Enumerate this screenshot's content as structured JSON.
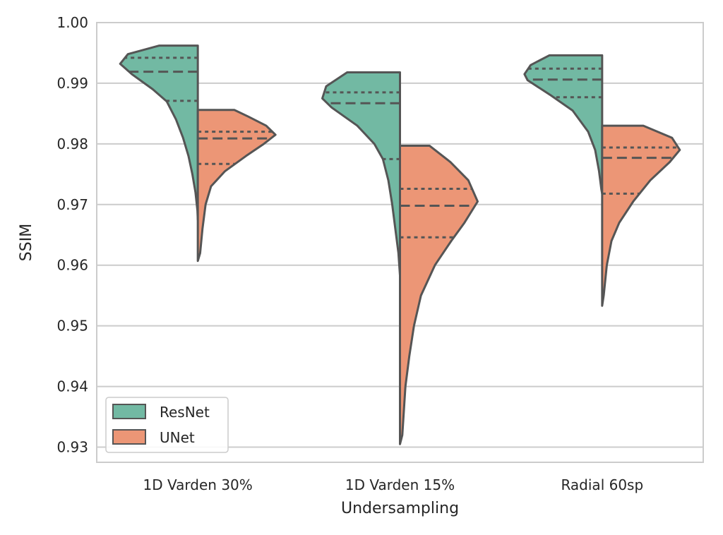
{
  "chart_data": {
    "type": "violin",
    "split": true,
    "title": "",
    "xlabel": "Undersampling",
    "ylabel": "SSIM",
    "categories": [
      "1D Varden 30%",
      "1D Varden 15%",
      "Radial 60sp"
    ],
    "ylim": [
      0.9275,
      1.0
    ],
    "yticks": [
      "0.93",
      "0.94",
      "0.95",
      "0.96",
      "0.97",
      "0.98",
      "0.99",
      "1.00"
    ],
    "grid": true,
    "legend_position": "lower-left",
    "inner": "quartile",
    "series": [
      {
        "name": "ResNet",
        "color": "#72b9a3",
        "violins": [
          {
            "min": 0.9675,
            "max": 0.9962,
            "q1": 0.9871,
            "median": 0.9919,
            "q3": 0.9942,
            "profile": [
              [
                0.9675,
                0.0
              ],
              [
                0.969,
                0.005
              ],
              [
                0.972,
                0.03
              ],
              [
                0.975,
                0.07
              ],
              [
                0.978,
                0.12
              ],
              [
                0.981,
                0.19
              ],
              [
                0.984,
                0.28
              ],
              [
                0.987,
                0.4
              ],
              [
                0.989,
                0.58
              ],
              [
                0.9915,
                0.85
              ],
              [
                0.9932,
                1.0
              ],
              [
                0.9948,
                0.9
              ],
              [
                0.9962,
                0.5
              ]
            ]
          },
          {
            "min": 0.9583,
            "max": 0.9918,
            "q1": 0.9775,
            "median": 0.9867,
            "q3": 0.9885,
            "profile": [
              [
                0.9583,
                0.0
              ],
              [
                0.962,
                0.02
              ],
              [
                0.966,
                0.06
              ],
              [
                0.97,
                0.1
              ],
              [
                0.974,
                0.15
              ],
              [
                0.9775,
                0.22
              ],
              [
                0.98,
                0.33
              ],
              [
                0.983,
                0.55
              ],
              [
                0.986,
                0.88
              ],
              [
                0.9875,
                1.0
              ],
              [
                0.9895,
                0.95
              ],
              [
                0.9918,
                0.68
              ]
            ]
          },
          {
            "min": 0.9718,
            "max": 0.9946,
            "q1": 0.9877,
            "median": 0.9906,
            "q3": 0.9924,
            "profile": [
              [
                0.9718,
                0.0
              ],
              [
                0.9725,
                0.01
              ],
              [
                0.9755,
                0.04
              ],
              [
                0.979,
                0.09
              ],
              [
                0.982,
                0.18
              ],
              [
                0.9855,
                0.38
              ],
              [
                0.988,
                0.66
              ],
              [
                0.9905,
                0.96
              ],
              [
                0.9915,
                1.0
              ],
              [
                0.993,
                0.92
              ],
              [
                0.9946,
                0.68
              ]
            ]
          }
        ]
      },
      {
        "name": "UNet",
        "color": "#ec9676",
        "violins": [
          {
            "min": 0.9607,
            "max": 0.9856,
            "q1": 0.9767,
            "median": 0.9809,
            "q3": 0.982,
            "profile": [
              [
                0.9607,
                0.0
              ],
              [
                0.962,
                0.03
              ],
              [
                0.966,
                0.06
              ],
              [
                0.97,
                0.1
              ],
              [
                0.973,
                0.17
              ],
              [
                0.9755,
                0.35
              ],
              [
                0.978,
                0.62
              ],
              [
                0.98,
                0.85
              ],
              [
                0.9815,
                1.0
              ],
              [
                0.983,
                0.88
              ],
              [
                0.9845,
                0.65
              ],
              [
                0.9856,
                0.47
              ]
            ]
          },
          {
            "min": 0.9305,
            "max": 0.9797,
            "q1": 0.9646,
            "median": 0.9698,
            "q3": 0.9726,
            "profile": [
              [
                0.9305,
                0.0
              ],
              [
                0.932,
                0.03
              ],
              [
                0.936,
                0.05
              ],
              [
                0.94,
                0.07
              ],
              [
                0.945,
                0.12
              ],
              [
                0.95,
                0.18
              ],
              [
                0.955,
                0.27
              ],
              [
                0.96,
                0.45
              ],
              [
                0.964,
                0.66
              ],
              [
                0.967,
                0.83
              ],
              [
                0.9705,
                1.0
              ],
              [
                0.974,
                0.88
              ],
              [
                0.977,
                0.65
              ],
              [
                0.9797,
                0.38
              ]
            ]
          },
          {
            "min": 0.9533,
            "max": 0.983,
            "q1": 0.9718,
            "median": 0.9777,
            "q3": 0.9794,
            "profile": [
              [
                0.9533,
                0.0
              ],
              [
                0.955,
                0.02
              ],
              [
                0.96,
                0.06
              ],
              [
                0.964,
                0.12
              ],
              [
                0.967,
                0.22
              ],
              [
                0.9705,
                0.4
              ],
              [
                0.974,
                0.62
              ],
              [
                0.977,
                0.87
              ],
              [
                0.979,
                1.0
              ],
              [
                0.981,
                0.9
              ],
              [
                0.983,
                0.53
              ]
            ]
          }
        ]
      }
    ]
  }
}
